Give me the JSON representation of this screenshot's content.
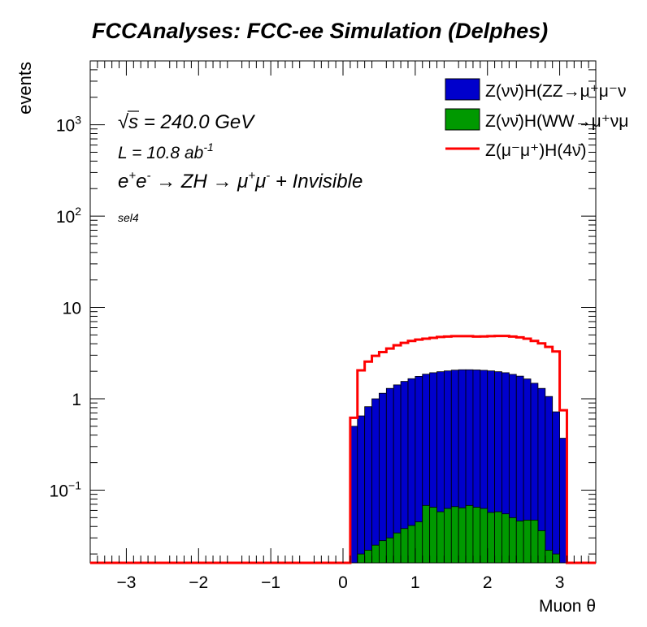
{
  "chart_data": {
    "type": "bar",
    "title": "FCCAnalyses: FCC-ee Simulation (Delphes)",
    "xlabel": "Muon θ",
    "ylabel": "events",
    "log_y": true,
    "xlim": [
      -3.5,
      3.5
    ],
    "ylim": [
      0.016,
      5000
    ],
    "x_ticks": [
      {
        "value": -3,
        "label": "−3"
      },
      {
        "value": -2,
        "label": "−2"
      },
      {
        "value": -1,
        "label": "−1"
      },
      {
        "value": 0,
        "label": "0"
      },
      {
        "value": 1,
        "label": "1"
      },
      {
        "value": 2,
        "label": "2"
      },
      {
        "value": 3,
        "label": "3"
      }
    ],
    "y_ticks": [
      {
        "value": 0.1,
        "base": "10",
        "exp": "−1"
      },
      {
        "value": 1,
        "base": "1",
        "exp": ""
      },
      {
        "value": 10,
        "base": "10",
        "exp": ""
      },
      {
        "value": 100,
        "base": "10",
        "exp": "2"
      },
      {
        "value": 1000,
        "base": "10",
        "exp": "3"
      }
    ],
    "annotations": {
      "sqrt_s": {
        "sqrt_symbol": "√",
        "s": "s",
        "rest": " = 240.0 GeV"
      },
      "lumi": {
        "text": "L = 10.8 ab",
        "sup": "-1"
      },
      "process": {
        "e": "e",
        "ep": "+",
        "e2": "e",
        "em": "-",
        "arrow1": " → ZH ",
        "arrow2": "→ μ",
        "mp": "+",
        "mu": "μ",
        "mm": "-",
        "tail": " + Invisible"
      },
      "selection": "sel4"
    },
    "legend": {
      "position": "top-right",
      "entries": [
        {
          "key": "zz",
          "label": "Z(νν̄)H(ZZ→μ⁺μ⁻ν",
          "style": "fill",
          "color": "#0000cc"
        },
        {
          "key": "ww",
          "label": "Z(νν̄)H(WW→μ⁺νμ",
          "style": "fill",
          "color": "#009900"
        },
        {
          "key": "sig",
          "label": "Z(μ⁻μ⁺)H(4ν̄)",
          "style": "line",
          "color": "#ff0000"
        }
      ]
    },
    "bin_width": 0.1,
    "x_start": 0.1,
    "series": [
      {
        "key": "sig",
        "name": "Z(μ⁻μ⁺)H(4ν̄)",
        "draw": "line",
        "color": "#ff0000",
        "values": [
          0.62,
          2.05,
          2.55,
          2.95,
          3.25,
          3.55,
          3.85,
          4.1,
          4.3,
          4.45,
          4.55,
          4.65,
          4.75,
          4.8,
          4.85,
          4.85,
          4.85,
          4.8,
          4.82,
          4.85,
          4.88,
          4.88,
          4.8,
          4.7,
          4.55,
          4.3,
          4.05,
          3.7,
          3.3,
          0.75
        ]
      },
      {
        "key": "zz",
        "name": "Z(νν̄)H(ZZ→μ⁺μ⁻ν",
        "draw": "fill",
        "color": "#0000cc",
        "values": [
          0.5,
          0.65,
          0.82,
          1.0,
          1.15,
          1.3,
          1.42,
          1.55,
          1.66,
          1.76,
          1.86,
          1.93,
          1.98,
          2.02,
          2.06,
          2.08,
          2.08,
          2.07,
          2.05,
          2.02,
          1.98,
          1.93,
          1.85,
          1.77,
          1.65,
          1.48,
          1.3,
          1.06,
          0.72,
          0.37
        ]
      },
      {
        "key": "ww",
        "name": "Z(νν̄)H(WW→μ⁺νμ",
        "draw": "fill",
        "color": "#009900",
        "values": [
          0.0,
          0.02,
          0.022,
          0.025,
          0.028,
          0.03,
          0.034,
          0.038,
          0.041,
          0.045,
          0.068,
          0.065,
          0.058,
          0.063,
          0.066,
          0.064,
          0.068,
          0.065,
          0.063,
          0.057,
          0.058,
          0.055,
          0.05,
          0.046,
          0.047,
          0.047,
          0.036,
          0.022,
          0.02,
          0.0
        ]
      }
    ]
  }
}
